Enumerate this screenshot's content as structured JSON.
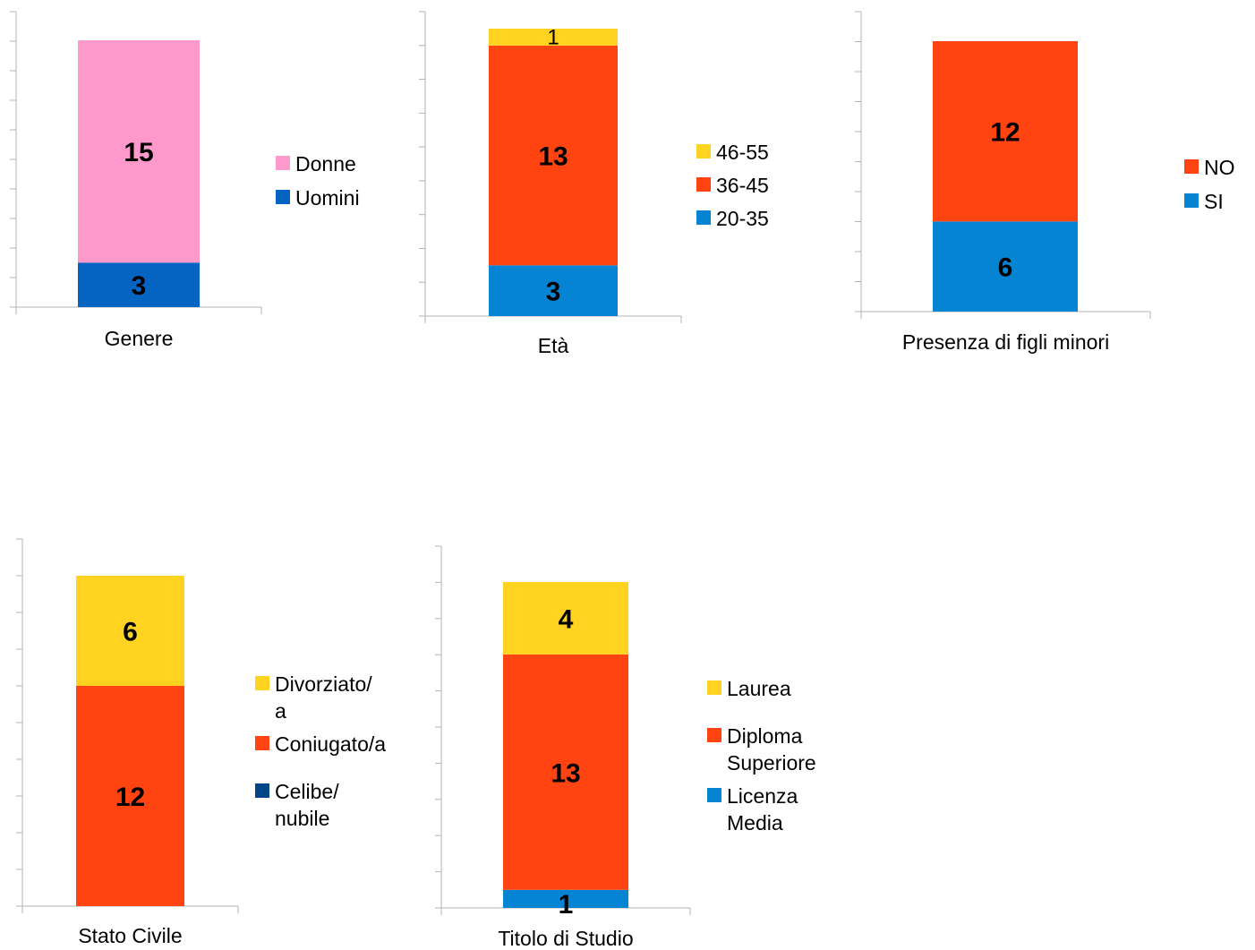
{
  "chart_data": [
    {
      "type": "bar",
      "stacked": true,
      "categories": [
        "Genere"
      ],
      "series": [
        {
          "name": "Uomini",
          "values": [
            3
          ],
          "color": "#0563c1"
        },
        {
          "name": "Donne",
          "values": [
            15
          ],
          "color": "#ff99cc"
        }
      ],
      "legend_order": [
        "Donne",
        "Uomini"
      ],
      "legend": "right",
      "label_style": "bold"
    },
    {
      "type": "bar",
      "stacked": true,
      "categories": [
        "Età"
      ],
      "series": [
        {
          "name": "20-35",
          "values": [
            3
          ],
          "color": "#0584d4"
        },
        {
          "name": "36-45",
          "values": [
            13
          ],
          "color": "#ff4411"
        },
        {
          "name": "46-55",
          "values": [
            1
          ],
          "color": "#ffd320"
        }
      ],
      "legend_order": [
        "46-55",
        "36-45",
        "20-35"
      ],
      "legend": "right",
      "label_style": "bold-except-last"
    },
    {
      "type": "bar",
      "stacked": true,
      "categories": [
        "Presenza di figli minori"
      ],
      "series": [
        {
          "name": "SI",
          "values": [
            6
          ],
          "color": "#0584d4"
        },
        {
          "name": "NO",
          "values": [
            12
          ],
          "color": "#ff4411"
        }
      ],
      "legend_order": [
        "NO",
        "SI"
      ],
      "legend": "right",
      "label_style": "bold"
    },
    {
      "type": "bar",
      "stacked": true,
      "categories": [
        "Stato Civile"
      ],
      "series": [
        {
          "name": "Celibe/nubile",
          "values": [
            0
          ],
          "color": "#004586"
        },
        {
          "name": "Coniugato/a",
          "values": [
            12
          ],
          "color": "#ff4411"
        },
        {
          "name": "Divorziato/a",
          "values": [
            6
          ],
          "color": "#ffd320"
        }
      ],
      "legend_order": [
        "Divorziato/a",
        "Coniugato/a",
        "Celibe/nubile"
      ],
      "legend": "right",
      "label_style": "bold"
    },
    {
      "type": "bar",
      "stacked": true,
      "categories": [
        "Titolo di Studio"
      ],
      "series": [
        {
          "name": "Licenza Media",
          "values": [
            1
          ],
          "color": "#0584d4"
        },
        {
          "name": "Diploma Superiore",
          "values": [
            13
          ],
          "color": "#ff4411"
        },
        {
          "name": "Laurea",
          "values": [
            4
          ],
          "color": "#ffd320"
        }
      ],
      "legend_order": [
        "Laurea",
        "Diploma Superiore",
        "Licenza Media"
      ],
      "legend": "right",
      "label_style": "bold"
    }
  ]
}
